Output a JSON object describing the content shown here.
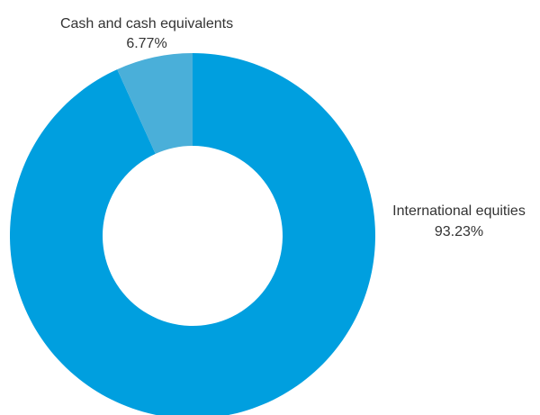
{
  "chart_data": {
    "type": "pie",
    "donut": true,
    "title": "",
    "slices": [
      {
        "name": "International equities",
        "value": 93.23,
        "label": "93.23%",
        "color": "#009fdf"
      },
      {
        "name": "Cash and cash equivalents",
        "value": 6.77,
        "label": "6.77%",
        "color": "#4aafd9"
      }
    ],
    "legend": "none"
  }
}
